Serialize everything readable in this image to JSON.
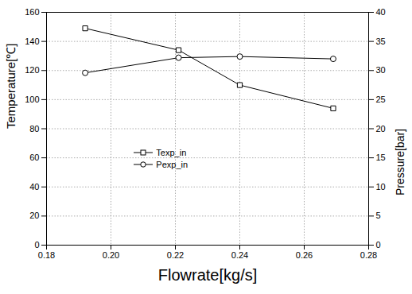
{
  "chart_data": {
    "type": "line",
    "xlabel": "Flowrate[kg/s]",
    "ylabel": "Temperature[℃]",
    "y2label": "Pressure[bar]",
    "x": [
      0.192,
      0.221,
      0.24,
      0.269
    ],
    "series": [
      {
        "name": "Texp_in",
        "color": "#000000",
        "marker": "square",
        "values": [
          149,
          134,
          110,
          94
        ]
      },
      {
        "name": "Pexp_in",
        "color": "#000000",
        "marker": "circle",
        "axis": "y2",
        "values": [
          29.6,
          32.2,
          32.4,
          32.0
        ]
      }
    ],
    "xlim": [
      0.18,
      0.28
    ],
    "xticks": [
      0.18,
      {
        "value": 0.2,
        "label": "0.20"
      },
      0.22,
      0.24,
      0.26,
      0.28
    ],
    "ylim": [
      0,
      160
    ],
    "yticks": [
      0,
      20,
      40,
      60,
      80,
      100,
      120,
      140,
      160
    ],
    "y2lim": [
      0,
      40
    ],
    "y2ticks": [
      0,
      5,
      10,
      15,
      20,
      25,
      30,
      35,
      40
    ],
    "grid": true,
    "legend": "left"
  }
}
